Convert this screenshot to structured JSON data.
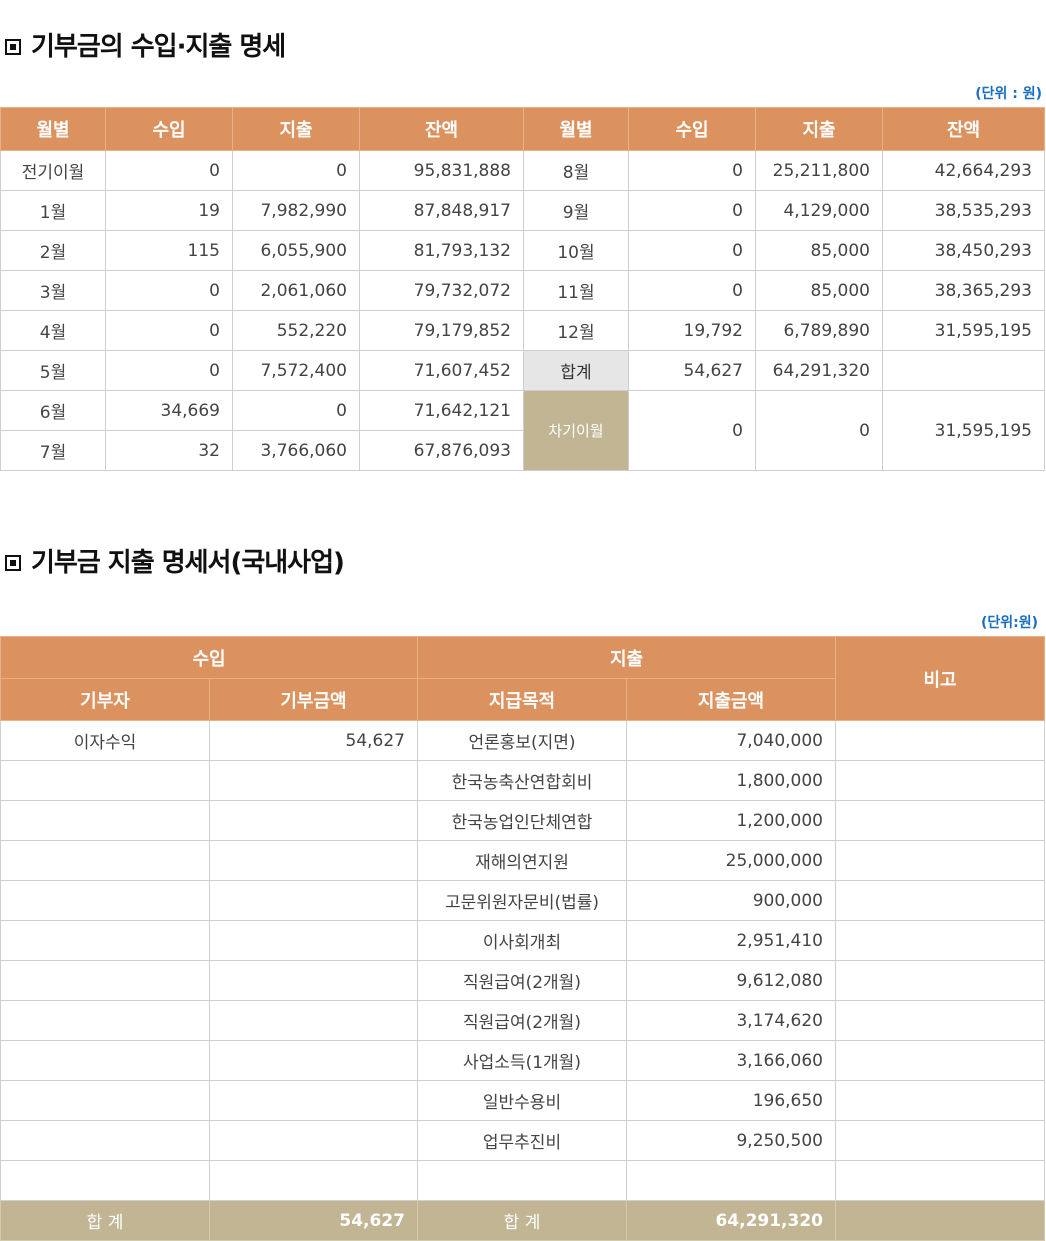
{
  "section1": {
    "title": "기부금의 수입·지출 명세",
    "unit": "(단위 : 원)",
    "headers": [
      "월별",
      "수입",
      "지출",
      "잔액",
      "월별",
      "수입",
      "지출",
      "잔액"
    ],
    "left_rows": [
      {
        "month": "전기이월",
        "income": "0",
        "expense": "0",
        "balance": "95,831,888"
      },
      {
        "month": "1월",
        "income": "19",
        "expense": "7,982,990",
        "balance": "87,848,917"
      },
      {
        "month": "2월",
        "income": "115",
        "expense": "6,055,900",
        "balance": "81,793,132"
      },
      {
        "month": "3월",
        "income": "0",
        "expense": "2,061,060",
        "balance": "79,732,072"
      },
      {
        "month": "4월",
        "income": "0",
        "expense": "552,220",
        "balance": "79,179,852"
      },
      {
        "month": "5월",
        "income": "0",
        "expense": "7,572,400",
        "balance": "71,607,452"
      },
      {
        "month": "6월",
        "income": "34,669",
        "expense": "0",
        "balance": "71,642,121"
      },
      {
        "month": "7월",
        "income": "32",
        "expense": "3,766,060",
        "balance": "67,876,093"
      }
    ],
    "right_rows": [
      {
        "month": "8월",
        "income": "0",
        "expense": "25,211,800",
        "balance": "42,664,293"
      },
      {
        "month": "9월",
        "income": "0",
        "expense": "4,129,000",
        "balance": "38,535,293"
      },
      {
        "month": "10월",
        "income": "0",
        "expense": "85,000",
        "balance": "38,450,293"
      },
      {
        "month": "11월",
        "income": "0",
        "expense": "85,000",
        "balance": "38,365,293"
      },
      {
        "month": "12월",
        "income": "19,792",
        "expense": "6,789,890",
        "balance": "31,595,195"
      }
    ],
    "total": {
      "label": "합계",
      "income": "54,627",
      "expense": "64,291,320",
      "balance": ""
    },
    "carryover": {
      "label": "차기이월",
      "income": "0",
      "expense": "0",
      "balance": "31,595,195"
    }
  },
  "section2": {
    "title": "기부금 지출 명세서(국내사업)",
    "unit": "(단위:원)",
    "group_headers": {
      "income": "수입",
      "expense": "지출",
      "note": "비고"
    },
    "sub_headers": {
      "donor": "기부자",
      "donation_amount": "기부금액",
      "purpose": "지급목적",
      "expense_amount": "지출금액"
    },
    "rows": [
      {
        "donor": "이자수익",
        "donation": "54,627",
        "purpose": "언론홍보(지면)",
        "amount": "7,040,000",
        "note": ""
      },
      {
        "donor": "",
        "donation": "",
        "purpose": "한국농축산연합회비",
        "amount": "1,800,000",
        "note": ""
      },
      {
        "donor": "",
        "donation": "",
        "purpose": "한국농업인단체연합",
        "amount": "1,200,000",
        "note": ""
      },
      {
        "donor": "",
        "donation": "",
        "purpose": "재해의연지원",
        "amount": "25,000,000",
        "note": ""
      },
      {
        "donor": "",
        "donation": "",
        "purpose": "고문위원자문비(법률)",
        "amount": "900,000",
        "note": ""
      },
      {
        "donor": "",
        "donation": "",
        "purpose": "이사회개최",
        "amount": "2,951,410",
        "note": ""
      },
      {
        "donor": "",
        "donation": "",
        "purpose": "직원급여(2개월)",
        "amount": "9,612,080",
        "note": ""
      },
      {
        "donor": "",
        "donation": "",
        "purpose": "직원급여(2개월)",
        "amount": "3,174,620",
        "note": ""
      },
      {
        "donor": "",
        "donation": "",
        "purpose": "사업소득(1개월)",
        "amount": "3,166,060",
        "note": ""
      },
      {
        "donor": "",
        "donation": "",
        "purpose": "일반수용비",
        "amount": "196,650",
        "note": ""
      },
      {
        "donor": "",
        "donation": "",
        "purpose": "업무추진비",
        "amount": "9,250,500",
        "note": ""
      },
      {
        "donor": "",
        "donation": "",
        "purpose": "",
        "amount": "",
        "note": ""
      }
    ],
    "total": {
      "label_income": "합 계",
      "donation": "54,627",
      "label_expense": "합 계",
      "amount": "64,291,320",
      "note": ""
    }
  }
}
